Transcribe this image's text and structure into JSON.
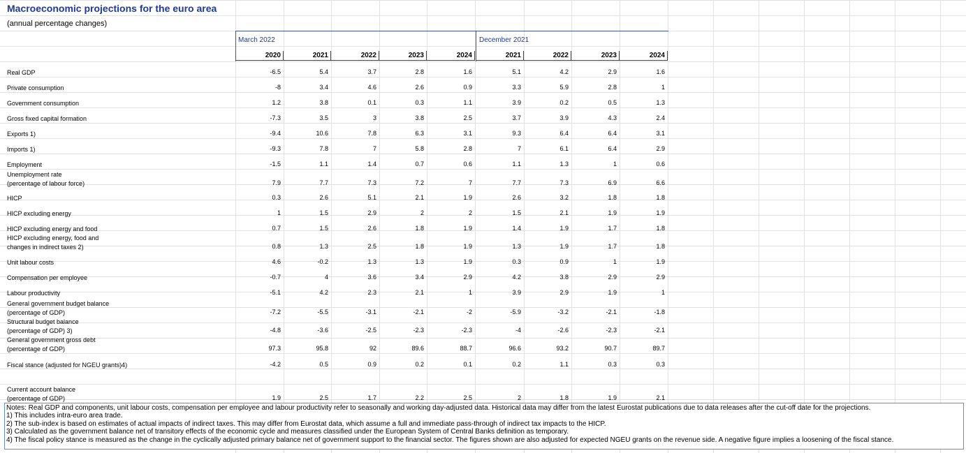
{
  "title": "Macroeconomic projections for the euro area",
  "subtitle": "(annual percentage changes)",
  "groups": [
    {
      "label": "March 2022"
    },
    {
      "label": "December 2021"
    }
  ],
  "years": [
    "2020",
    "2021",
    "2022",
    "2023",
    "2024",
    "2021",
    "2022",
    "2023",
    "2024"
  ],
  "rows": [
    {
      "label": [
        "Real GDP"
      ],
      "values": [
        "-6.5",
        "5.4",
        "3.7",
        "2.8",
        "1.6",
        "5.1",
        "4.2",
        "2.9",
        "1.6"
      ]
    },
    {
      "label": [
        "Private consumption"
      ],
      "values": [
        "-8",
        "3.4",
        "4.6",
        "2.6",
        "0.9",
        "3.3",
        "5.9",
        "2.8",
        "1"
      ]
    },
    {
      "label": [
        "Government consumption"
      ],
      "values": [
        "1.2",
        "3.8",
        "0.1",
        "0.3",
        "1.1",
        "3.9",
        "0.2",
        "0.5",
        "1.3"
      ]
    },
    {
      "label": [
        "Gross fixed capital formation"
      ],
      "values": [
        "-7.3",
        "3.5",
        "3",
        "3.8",
        "2.5",
        "3.7",
        "3.9",
        "4.3",
        "2.4"
      ]
    },
    {
      "label": [
        "Exports 1)"
      ],
      "values": [
        "-9.4",
        "10.6",
        "7.8",
        "6.3",
        "3.1",
        "9.3",
        "6.4",
        "6.4",
        "3.1"
      ]
    },
    {
      "label": [
        "Imports 1)"
      ],
      "values": [
        "-9.3",
        "7.8",
        "7",
        "5.8",
        "2.8",
        "7",
        "6.1",
        "6.4",
        "2.9"
      ]
    },
    {
      "label": [
        "Employment"
      ],
      "values": [
        "-1.5",
        "1.1",
        "1.4",
        "0.7",
        "0.6",
        "1.1",
        "1.3",
        "1",
        "0.6"
      ]
    },
    {
      "label": [
        "Unemployment rate",
        "(percentage of labour force)"
      ],
      "values": [
        "7.9",
        "7.7",
        "7.3",
        "7.2",
        "7",
        "7.7",
        "7.3",
        "6.9",
        "6.6"
      ]
    },
    {
      "label": [
        "HICP"
      ],
      "values": [
        "0.3",
        "2.6",
        "5.1",
        "2.1",
        "1.9",
        "2.6",
        "3.2",
        "1.8",
        "1.8"
      ]
    },
    {
      "label": [
        "HICP excluding energy"
      ],
      "values": [
        "1",
        "1.5",
        "2.9",
        "2",
        "2",
        "1.5",
        "2.1",
        "1.9",
        "1.9"
      ]
    },
    {
      "label": [
        "HICP excluding energy and food"
      ],
      "values": [
        "0.7",
        "1.5",
        "2.6",
        "1.8",
        "1.9",
        "1.4",
        "1.9",
        "1.7",
        "1.8"
      ]
    },
    {
      "label": [
        "HICP excluding energy, food and",
        "changes in indirect taxes 2)"
      ],
      "values": [
        "0.8",
        "1.3",
        "2.5",
        "1.8",
        "1.9",
        "1.3",
        "1.9",
        "1.7",
        "1.8"
      ]
    },
    {
      "label": [
        "Unit labour costs"
      ],
      "values": [
        "4.6",
        "-0.2",
        "1.3",
        "1.3",
        "1.9",
        "0.3",
        "0.9",
        "1",
        "1.9"
      ]
    },
    {
      "label": [
        "Compensation per employee"
      ],
      "values": [
        "-0.7",
        "4",
        "3.6",
        "3.4",
        "2.9",
        "4.2",
        "3.8",
        "2.9",
        "2.9"
      ]
    },
    {
      "label": [
        "Labour productivity"
      ],
      "values": [
        "-5.1",
        "4.2",
        "2.3",
        "2.1",
        "1",
        "3.9",
        "2.9",
        "1.9",
        "1"
      ]
    },
    {
      "label": [
        "General government budget balance",
        "(percentage of GDP)"
      ],
      "values": [
        "-7.2",
        "-5.5",
        "-3.1",
        "-2.1",
        "-2",
        "-5.9",
        "-3.2",
        "-2.1",
        "-1.8"
      ]
    },
    {
      "label": [
        "Structural budget balance",
        "(percentage of GDP) 3)"
      ],
      "values": [
        "-4.8",
        "-3.6",
        "-2.5",
        "-2.3",
        "-2.3",
        "-4",
        "-2.6",
        "-2.3",
        "-2.1"
      ]
    },
    {
      "label": [
        "General government gross debt",
        "(percentage of GDP)"
      ],
      "values": [
        "97.3",
        "95.8",
        "92",
        "89.6",
        "88.7",
        "96.6",
        "93.2",
        "90.7",
        "89.7"
      ]
    },
    {
      "label": [
        "Fiscal stance (adjusted for NGEU grants)4)"
      ],
      "values": [
        "-4.2",
        "0.5",
        "0.9",
        "0.2",
        "0.1",
        "0.2",
        "1.1",
        "0.3",
        "0.3"
      ]
    },
    {
      "label": [
        "Current account balance",
        "(percentage of GDP)"
      ],
      "values": [
        "1.9",
        "2.5",
        "1.7",
        "2.2",
        "2.5",
        "2",
        "1.8",
        "1.9",
        "2.1"
      ]
    }
  ],
  "notes": [
    "Notes: Real GDP and components, unit labour costs, compensation per employee and labour productivity refer to seasonally and working day-adjusted data. Historical data may differ from the latest Eurostat publications due to data releases after the cut-off date for the projections.",
    "1) This includes intra-euro area trade.",
    "2) The sub-index is based on estimates of actual impacts of indirect taxes. This may differ from Eurostat data, which assume a full and immediate pass-through of indirect tax impacts to the HICP.",
    "3) Calculated as the government balance net of transitory effects of the economic cycle and measures classified under the European System of Central Banks definition as temporary.",
    "4) The fiscal policy stance is measured as the change in the cyclically adjusted primary balance net of government support to the financial sector. The figures shown are also adjusted for expected NGEU grants on the revenue side. A negative figure implies a loosening of the fiscal stance."
  ]
}
